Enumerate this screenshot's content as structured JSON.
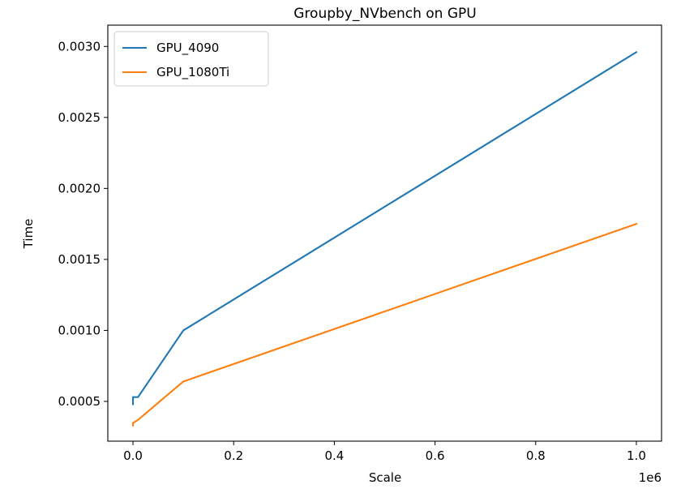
{
  "chart_data": {
    "type": "line",
    "title": "Groupby_NVbench on GPU",
    "xlabel": "Scale",
    "ylabel": "Time",
    "x_offset_label": "1e6",
    "xlim": [
      -50000,
      1050000
    ],
    "ylim": [
      0.00022,
      0.00315
    ],
    "x_ticks": [
      0,
      200000,
      400000,
      600000,
      800000,
      1000000
    ],
    "x_tick_labels": [
      "0.0",
      "0.2",
      "0.4",
      "0.6",
      "0.8",
      "1.0"
    ],
    "y_ticks": [
      0.0005,
      0.001,
      0.0015,
      0.002,
      0.0025,
      0.003
    ],
    "y_tick_labels": [
      "0.0005",
      "0.0010",
      "0.0015",
      "0.0020",
      "0.0025",
      "0.0030"
    ],
    "grid": false,
    "legend_position": "top-left",
    "series": [
      {
        "name": "GPU_4090",
        "color": "#1f77b4",
        "x": [
          1,
          10,
          100,
          1000,
          10000,
          100000,
          1000000
        ],
        "y": [
          0.00048,
          0.00053,
          0.00053,
          0.00053,
          0.00053,
          0.001,
          0.00296
        ]
      },
      {
        "name": "GPU_1080Ti",
        "color": "#ff7f0e",
        "x": [
          1,
          10,
          100,
          1000,
          10000,
          100000,
          1000000
        ],
        "y": [
          0.00033,
          0.00034,
          0.00035,
          0.00035,
          0.00037,
          0.00064,
          0.00175
        ]
      }
    ]
  }
}
